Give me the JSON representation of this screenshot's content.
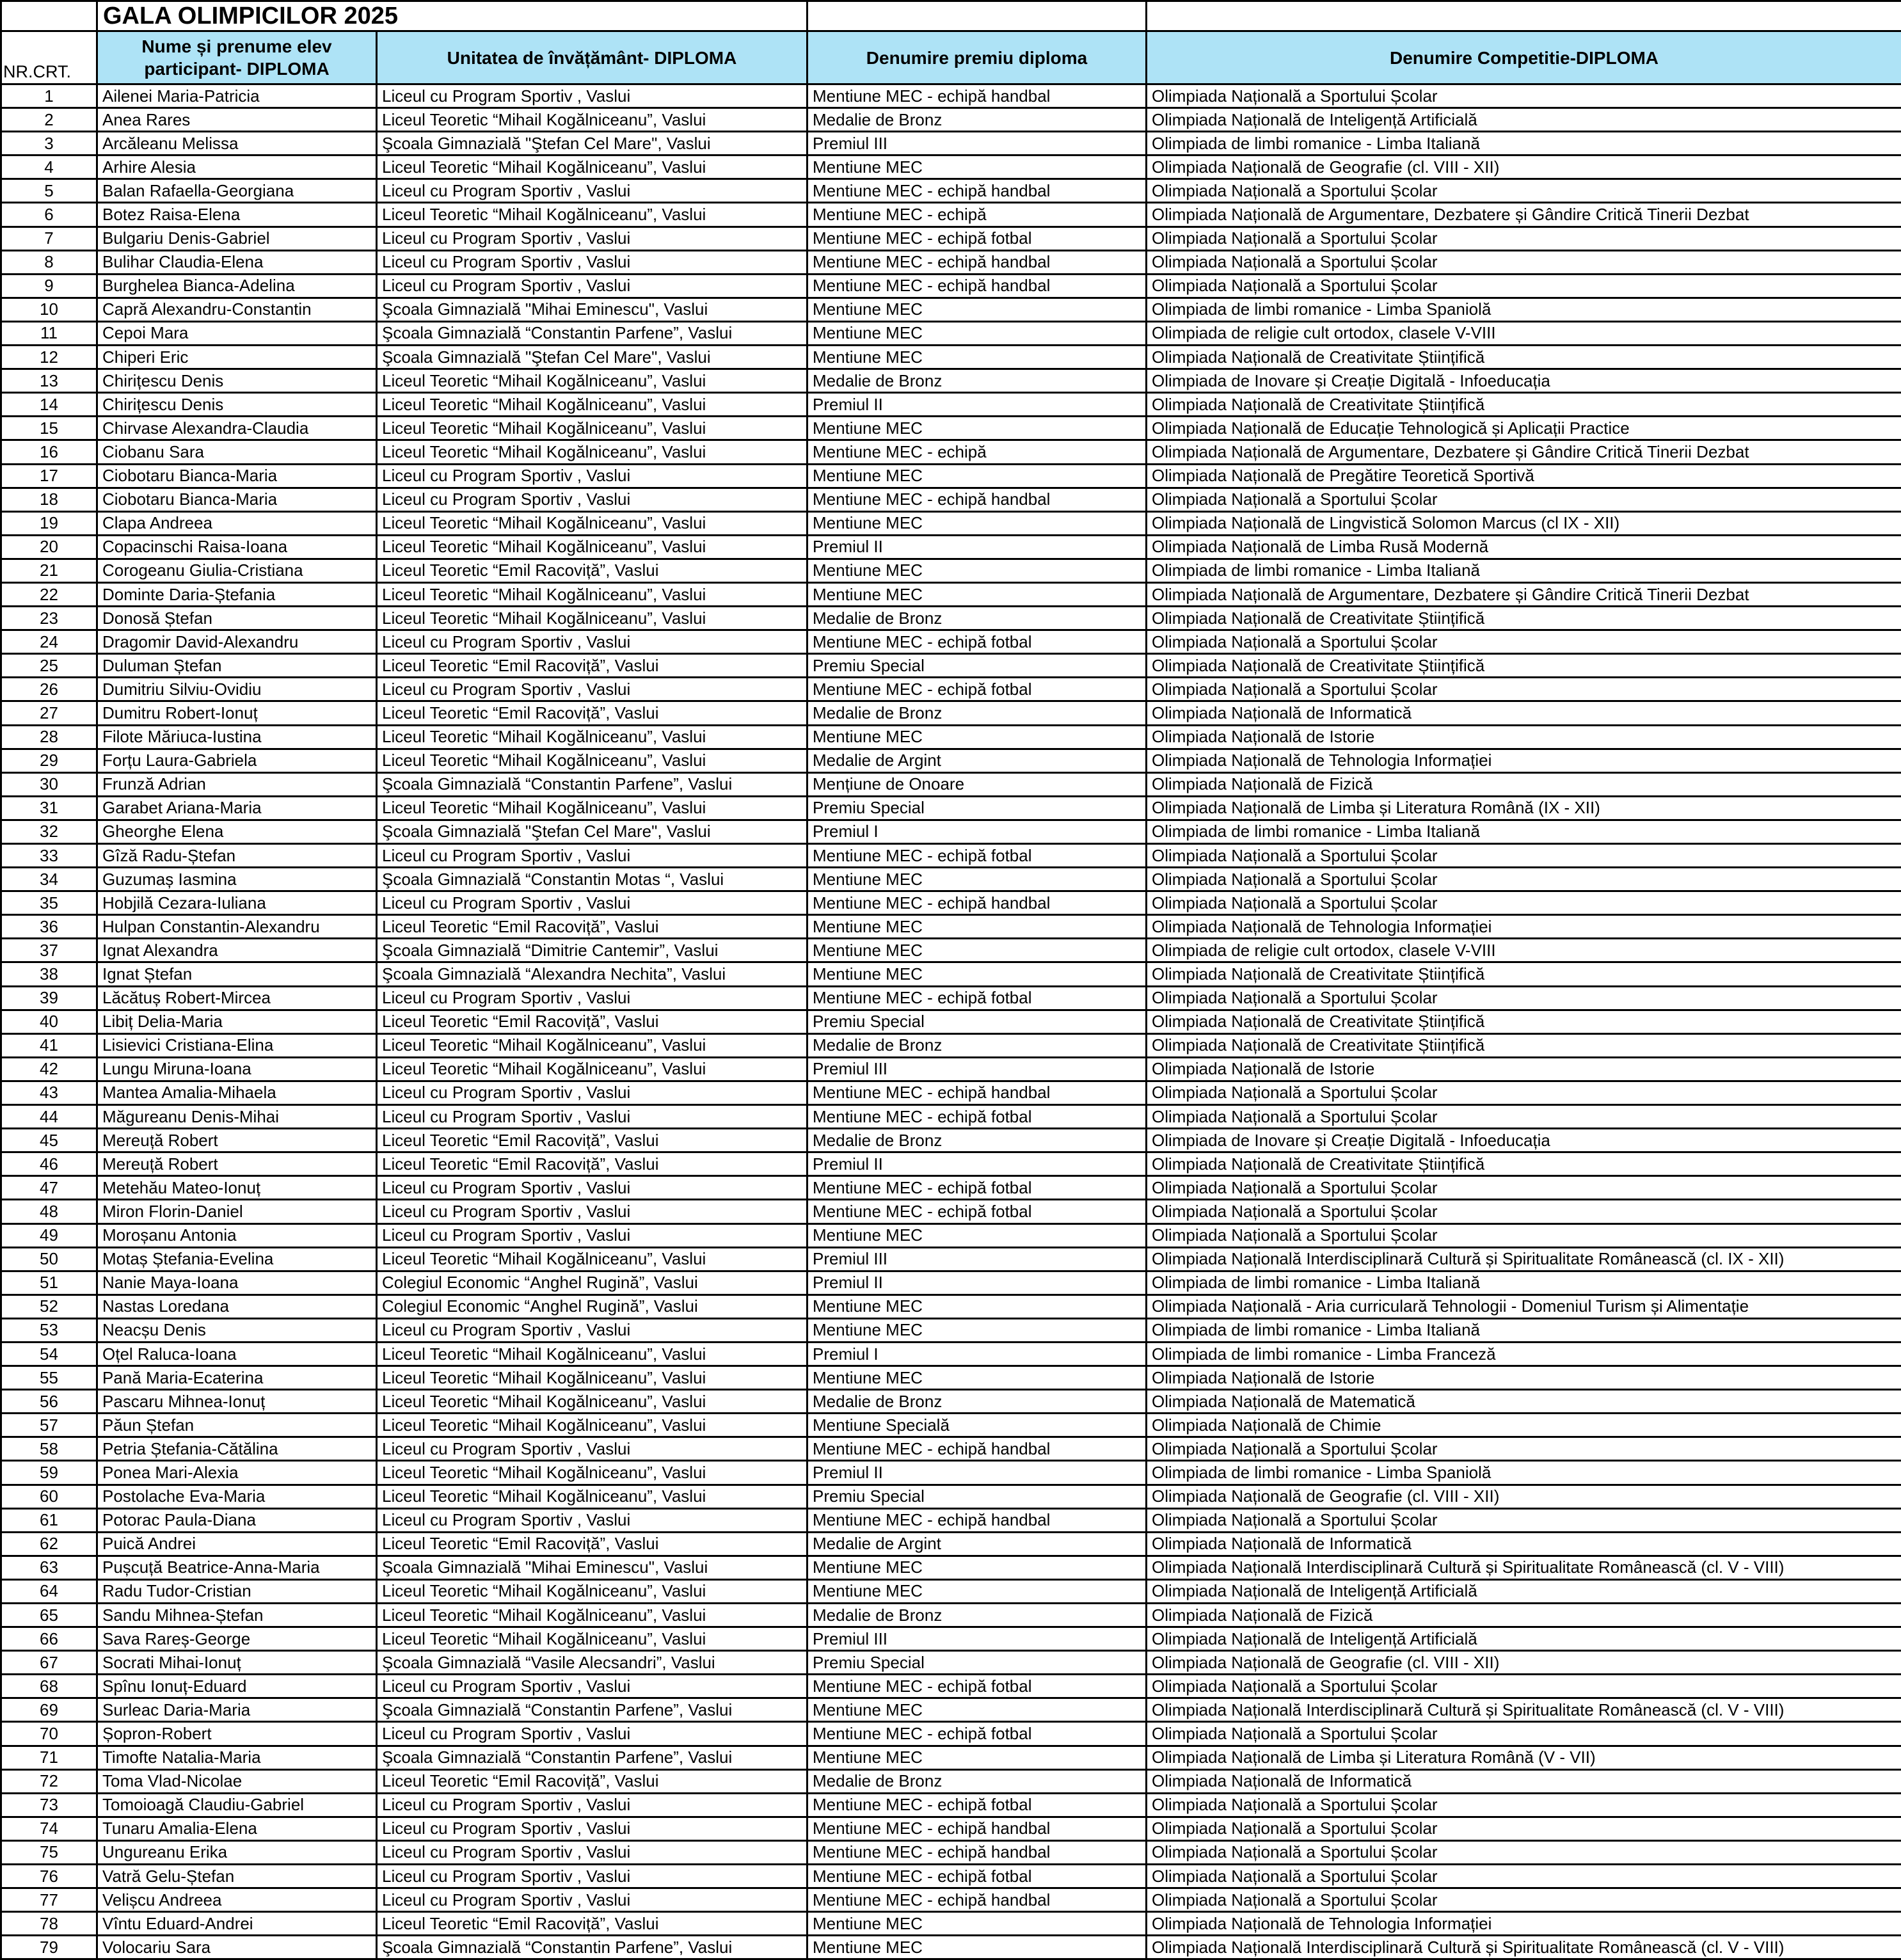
{
  "title": "GALA OLIMPICILOR 2025",
  "header": {
    "columns": [
      "NR.CRT.",
      "Nume și prenume elev participant- DIPLOMA",
      "Unitatea de învățământ- DIPLOMA",
      "Denumire premiu diploma",
      "Denumire Competitie-DIPLOMA"
    ]
  },
  "colors": {
    "header_bg": "#AEE3F6",
    "border": "#000000"
  },
  "rows": [
    [
      1,
      "Ailenei Maria-Patricia",
      "Liceul cu Program Sportiv , Vaslui",
      "Mentiune MEC - echipă handbal",
      "Olimpiada Națională a Sportului Școlar"
    ],
    [
      2,
      "Anea Rares",
      "Liceul Teoretic “Mihail Kogălniceanu”, Vaslui",
      "Medalie de Bronz",
      "Olimpiada Națională de Inteligență Artificială"
    ],
    [
      3,
      "Arcăleanu Melissa",
      "Şcoala Gimnazială \"Ştefan Cel Mare\", Vaslui",
      "Premiul III",
      "Olimpiada de limbi romanice - Limba Italiană"
    ],
    [
      4,
      "Arhire Alesia",
      "Liceul Teoretic “Mihail Kogălniceanu”, Vaslui",
      "Mentiune MEC",
      "Olimpiada Națională de Geografie (cl. VIII - XII)"
    ],
    [
      5,
      "Balan Rafaella-Georgiana",
      "Liceul cu Program Sportiv , Vaslui",
      "Mentiune MEC - echipă handbal",
      "Olimpiada Națională a Sportului Școlar"
    ],
    [
      6,
      "Botez Raisa-Elena",
      "Liceul Teoretic “Mihail Kogălniceanu”, Vaslui",
      "Mentiune MEC - echipă",
      "Olimpiada Națională de Argumentare, Dezbatere și Gândire Critică Tinerii Dezbat"
    ],
    [
      7,
      "Bulgariu Denis-Gabriel",
      "Liceul cu Program Sportiv , Vaslui",
      "Mentiune MEC - echipă fotbal",
      "Olimpiada Națională a Sportului Școlar"
    ],
    [
      8,
      "Bulihar Claudia-Elena",
      "Liceul cu Program Sportiv , Vaslui",
      "Mentiune MEC - echipă handbal",
      "Olimpiada Națională a Sportului Școlar"
    ],
    [
      9,
      "Burghelea Bianca-Adelina",
      "Liceul cu Program Sportiv , Vaslui",
      "Mentiune MEC - echipă handbal",
      "Olimpiada Națională a Sportului Școlar"
    ],
    [
      10,
      "Capră Alexandru-Constantin",
      "Şcoala Gimnazială  \"Mihai Eminescu\", Vaslui",
      "Mentiune MEC",
      "Olimpiada de limbi romanice - Limba Spaniolă"
    ],
    [
      11,
      "Cepoi Mara",
      "Şcoala Gimnazială “Constantin Parfene”, Vaslui",
      "Mentiune MEC",
      "Olimpiada de religie cult ortodox, clasele V-VIII"
    ],
    [
      12,
      "Chiperi Eric",
      "Şcoala Gimnazială \"Ştefan Cel Mare\", Vaslui",
      "Mentiune MEC",
      "Olimpiada Națională de Creativitate Științifică"
    ],
    [
      13,
      "Chirițescu Denis",
      "Liceul Teoretic “Mihail Kogălniceanu”, Vaslui",
      "Medalie de Bronz",
      "Olimpiada de Inovare și Creație Digitală - Infoeducația"
    ],
    [
      14,
      "Chirițescu Denis",
      "Liceul Teoretic “Mihail Kogălniceanu”, Vaslui",
      "Premiul II",
      "Olimpiada Națională de Creativitate Științifică"
    ],
    [
      15,
      "Chirvase Alexandra-Claudia",
      "Liceul Teoretic “Mihail Kogălniceanu”, Vaslui",
      "Mentiune MEC",
      "Olimpiada Națională de Educație Tehnologică și Aplicații Practice"
    ],
    [
      16,
      "Ciobanu Sara",
      "Liceul Teoretic “Mihail Kogălniceanu”, Vaslui",
      "Mentiune MEC - echipă",
      "Olimpiada Națională de Argumentare, Dezbatere și Gândire Critică Tinerii Dezbat"
    ],
    [
      17,
      "Ciobotaru Bianca-Maria",
      "Liceul cu Program Sportiv , Vaslui",
      "Mentiune MEC",
      "Olimpiada Națională de Pregătire Teoretică Sportivă"
    ],
    [
      18,
      "Ciobotaru Bianca-Maria",
      "Liceul cu Program Sportiv , Vaslui",
      "Mentiune MEC - echipă handbal",
      "Olimpiada Națională a Sportului Școlar"
    ],
    [
      19,
      "Clapa Andreea",
      "Liceul Teoretic “Mihail Kogălniceanu”, Vaslui",
      "Mentiune MEC",
      "Olimpiada Națională de Lingvistică Solomon Marcus (cl IX - XII)"
    ],
    [
      20,
      "Copacinschi Raisa-Ioana",
      "Liceul Teoretic “Mihail Kogălniceanu”, Vaslui",
      "Premiul II",
      "Olimpiada Națională de Limba Rusă Modernă"
    ],
    [
      21,
      "Corogeanu Giulia-Cristiana",
      "Liceul Teoretic “Emil Racoviță”, Vaslui",
      "Mentiune MEC",
      "Olimpiada de limbi romanice - Limba Italiană"
    ],
    [
      22,
      "Dominte Daria-Ștefania",
      "Liceul Teoretic “Mihail Kogălniceanu”, Vaslui",
      "Mentiune MEC",
      "Olimpiada Națională de Argumentare, Dezbatere și Gândire Critică Tinerii Dezbat"
    ],
    [
      23,
      "Donosă Ștefan",
      "Liceul Teoretic “Mihail Kogălniceanu”, Vaslui",
      "Medalie de Bronz",
      "Olimpiada Națională de Creativitate Științifică"
    ],
    [
      24,
      "Dragomir David-Alexandru",
      "Liceul cu Program Sportiv , Vaslui",
      "Mentiune MEC - echipă fotbal",
      "Olimpiada Națională a Sportului Școlar"
    ],
    [
      25,
      "Duluman Ștefan",
      "Liceul Teoretic “Emil Racoviță”, Vaslui",
      "Premiu Special",
      "Olimpiada Națională de Creativitate Științifică"
    ],
    [
      26,
      "Dumitriu Silviu-Ovidiu",
      "Liceul cu Program Sportiv , Vaslui",
      "Mentiune MEC - echipă fotbal",
      "Olimpiada Națională a Sportului Școlar"
    ],
    [
      27,
      "Dumitru Robert-Ionuț",
      "Liceul Teoretic “Emil Racoviță”, Vaslui",
      "Medalie de Bronz",
      "Olimpiada Națională de Informatică"
    ],
    [
      28,
      "Filote Măriuca-Iustina",
      "Liceul Teoretic “Mihail Kogălniceanu”, Vaslui",
      "Mentiune MEC",
      "Olimpiada Națională de Istorie"
    ],
    [
      29,
      "Forțu Laura-Gabriela",
      "Liceul Teoretic “Mihail Kogălniceanu”, Vaslui",
      "Medalie de Argint",
      "Olimpiada Națională de Tehnologia Informației"
    ],
    [
      30,
      "Frunză Adrian",
      "Şcoala Gimnazială “Constantin Parfene”, Vaslui",
      "Mențiune de Onoare",
      "Olimpiada Națională de Fizică"
    ],
    [
      31,
      "Garabet Ariana-Maria",
      "Liceul Teoretic “Mihail Kogălniceanu”, Vaslui",
      "Premiu Special",
      "Olimpiada Națională de Limba și Literatura Română (IX - XII)"
    ],
    [
      32,
      "Gheorghe Elena",
      "Şcoala Gimnazială \"Ştefan Cel Mare\", Vaslui",
      "Premiul I",
      "Olimpiada de limbi romanice - Limba Italiană"
    ],
    [
      33,
      "Gîză Radu-Ștefan",
      "Liceul cu Program Sportiv , Vaslui",
      "Mentiune MEC - echipă fotbal",
      "Olimpiada Națională a Sportului Școlar"
    ],
    [
      34,
      "Guzumaș Iasmina",
      "Şcoala Gimnazială  “Constantin Motas “, Vaslui",
      "Mentiune MEC",
      "Olimpiada Națională a Sportului Școlar"
    ],
    [
      35,
      "Hobjilă Cezara-Iuliana",
      "Liceul cu Program Sportiv , Vaslui",
      "Mentiune MEC - echipă handbal",
      "Olimpiada Națională a Sportului Școlar"
    ],
    [
      36,
      "Hulpan Constantin-Alexandru",
      "Liceul Teoretic “Emil Racoviță”, Vaslui",
      "Mentiune MEC",
      "Olimpiada Națională de Tehnologia Informației"
    ],
    [
      37,
      "Ignat Alexandra",
      "Şcoala Gimnazială “Dimitrie Cantemir”, Vaslui",
      "Mentiune MEC",
      "Olimpiada de religie cult ortodox, clasele V-VIII"
    ],
    [
      38,
      "Ignat Ștefan",
      "Şcoala Gimnazială  “Alexandra Nechita”, Vaslui",
      "Mentiune MEC",
      "Olimpiada Națională de Creativitate Științifică"
    ],
    [
      39,
      "Lăcătuș Robert-Mircea",
      "Liceul cu Program Sportiv , Vaslui",
      "Mentiune MEC - echipă fotbal",
      "Olimpiada Națională a Sportului Școlar"
    ],
    [
      40,
      "Libiț Delia-Maria",
      "Liceul Teoretic “Emil Racoviță”, Vaslui",
      "Premiu Special",
      "Olimpiada Națională de Creativitate Științifică"
    ],
    [
      41,
      "Lisievici Cristiana-Elina",
      "Liceul Teoretic “Mihail Kogălniceanu”, Vaslui",
      "Medalie de Bronz",
      "Olimpiada Națională de Creativitate Științifică"
    ],
    [
      42,
      "Lungu Miruna-Ioana",
      "Liceul Teoretic “Mihail Kogălniceanu”, Vaslui",
      "Premiul III",
      "Olimpiada Națională de Istorie"
    ],
    [
      43,
      "Mantea Amalia-Mihaela",
      "Liceul cu Program Sportiv , Vaslui",
      "Mentiune MEC - echipă handbal",
      "Olimpiada Națională a Sportului Școlar"
    ],
    [
      44,
      "Măgureanu Denis-Mihai",
      "Liceul cu Program Sportiv , Vaslui",
      "Mentiune MEC - echipă fotbal",
      "Olimpiada Națională a Sportului Școlar"
    ],
    [
      45,
      "Mereuță Robert",
      "Liceul Teoretic “Emil Racoviță”, Vaslui",
      "Medalie de Bronz",
      "Olimpiada de Inovare și Creație Digitală - Infoeducația"
    ],
    [
      46,
      "Mereuță Robert",
      "Liceul Teoretic “Emil Racoviță”, Vaslui",
      "Premiul II",
      "Olimpiada Națională de Creativitate Științifică"
    ],
    [
      47,
      "Metehău Mateo-Ionuț",
      "Liceul cu Program Sportiv , Vaslui",
      "Mentiune MEC - echipă fotbal",
      "Olimpiada Națională a Sportului Școlar"
    ],
    [
      48,
      "Miron Florin-Daniel",
      "Liceul cu Program Sportiv , Vaslui",
      "Mentiune MEC - echipă fotbal",
      "Olimpiada Națională a Sportului Școlar"
    ],
    [
      49,
      "Moroșanu Antonia",
      "Liceul cu Program Sportiv , Vaslui",
      "Mentiune MEC",
      "Olimpiada Națională a Sportului Școlar"
    ],
    [
      50,
      "Motaș Ștefania-Evelina",
      "Liceul Teoretic “Mihail Kogălniceanu”, Vaslui",
      "Premiul III",
      "Olimpiada Națională Interdisciplinară Cultură și Spiritualitate Românească (cl. IX - XII)"
    ],
    [
      51,
      "Nanie Maya-Ioana",
      "Colegiul Economic “Anghel Rugină”, Vaslui",
      "Premiul II",
      "Olimpiada de limbi romanice - Limba Italiană"
    ],
    [
      52,
      "Nastas Loredana",
      "Colegiul Economic “Anghel Rugină”, Vaslui",
      "Mentiune MEC",
      "Olimpiada Națională - Aria curriculară Tehnologii  - Domeniul Turism și Alimentație"
    ],
    [
      53,
      "Neacșu Denis",
      "Liceul cu Program Sportiv , Vaslui",
      "Mentiune MEC",
      "Olimpiada de limbi romanice - Limba Italiană"
    ],
    [
      54,
      "Oțel Raluca-Ioana",
      "Liceul Teoretic “Mihail Kogălniceanu”, Vaslui",
      "Premiul I",
      "Olimpiada de limbi romanice - Limba Franceză"
    ],
    [
      55,
      "Pană Maria-Ecaterina",
      "Liceul Teoretic “Mihail Kogălniceanu”, Vaslui",
      "Mentiune MEC",
      "Olimpiada Națională de Istorie"
    ],
    [
      56,
      "Pascaru Mihnea-Ionuț",
      "Liceul Teoretic “Mihail Kogălniceanu”, Vaslui",
      "Medalie de Bronz",
      "Olimpiada Națională de Matematică"
    ],
    [
      57,
      "Păun Ștefan",
      "Liceul Teoretic “Mihail Kogălniceanu”, Vaslui",
      "Mentiune Specială",
      "Olimpiada Națională de Chimie"
    ],
    [
      58,
      "Petria Ștefania-Cătălina",
      "Liceul cu Program Sportiv , Vaslui",
      "Mentiune MEC - echipă handbal",
      "Olimpiada Națională a Sportului Școlar"
    ],
    [
      59,
      "Ponea Mari-Alexia",
      "Liceul Teoretic “Mihail Kogălniceanu”, Vaslui",
      "Premiul II",
      "Olimpiada de limbi romanice - Limba Spaniolă"
    ],
    [
      60,
      "Postolache Eva-Maria",
      "Liceul Teoretic “Mihail Kogălniceanu”, Vaslui",
      "Premiu Special",
      "Olimpiada Națională de Geografie (cl. VIII - XII)"
    ],
    [
      61,
      "Potorac Paula-Diana",
      "Liceul cu Program Sportiv , Vaslui",
      "Mentiune MEC - echipă handbal",
      "Olimpiada Națională a Sportului Școlar"
    ],
    [
      62,
      "Puică Andrei",
      "Liceul Teoretic “Emil Racoviță”, Vaslui",
      "Medalie de Argint",
      "Olimpiada Națională de Informatică"
    ],
    [
      63,
      "Pușcuță Beatrice-Anna-Maria",
      "Şcoala Gimnazială  \"Mihai Eminescu\", Vaslui",
      "Mentiune MEC",
      "Olimpiada Națională Interdisciplinară Cultură și Spiritualitate Românească (cl. V - VIII)"
    ],
    [
      64,
      "Radu Tudor-Cristian",
      "Liceul Teoretic “Mihail Kogălniceanu”, Vaslui",
      "Mentiune MEC",
      "Olimpiada Națională de Inteligență Artificială"
    ],
    [
      65,
      "Sandu Mihnea-Ștefan",
      "Liceul Teoretic “Mihail Kogălniceanu”, Vaslui",
      "Medalie de Bronz",
      "Olimpiada Națională de Fizică"
    ],
    [
      66,
      "Sava Rareș-George",
      "Liceul Teoretic “Mihail Kogălniceanu”, Vaslui",
      "Premiul III",
      "Olimpiada Națională de Inteligență Artificială"
    ],
    [
      67,
      "Socrati Mihai-Ionuț",
      "Şcoala Gimnazială “Vasile  Alecsandri”, Vaslui",
      "Premiu Special",
      "Olimpiada Națională de Geografie (cl. VIII - XII)"
    ],
    [
      68,
      "Spînu Ionuț-Eduard",
      "Liceul cu Program Sportiv , Vaslui",
      "Mentiune MEC - echipă fotbal",
      "Olimpiada Națională a Sportului Școlar"
    ],
    [
      69,
      "Surleac Daria-Maria",
      "Şcoala Gimnazială “Constantin Parfene”, Vaslui",
      "Mentiune MEC",
      "Olimpiada Națională Interdisciplinară Cultură și Spiritualitate Românească (cl. V - VIII)"
    ],
    [
      70,
      "Șopron-Robert",
      "Liceul cu Program Sportiv , Vaslui",
      "Mentiune MEC - echipă fotbal",
      "Olimpiada Națională a Sportului Școlar"
    ],
    [
      71,
      "Timofte Natalia-Maria",
      "Şcoala Gimnazială “Constantin Parfene”, Vaslui",
      "Mentiune MEC",
      "Olimpiada Națională de Limba și Literatura Română (V - VII)"
    ],
    [
      72,
      "Toma Vlad-Nicolae",
      "Liceul Teoretic “Emil Racoviță”, Vaslui",
      "Medalie de Bronz",
      "Olimpiada Națională de Informatică"
    ],
    [
      73,
      "Tomoioagă Claudiu-Gabriel",
      "Liceul cu Program Sportiv , Vaslui",
      "Mentiune MEC - echipă fotbal",
      "Olimpiada Națională a Sportului Școlar"
    ],
    [
      74,
      "Tunaru Amalia-Elena",
      "Liceul cu Program Sportiv , Vaslui",
      "Mentiune MEC - echipă handbal",
      "Olimpiada Națională a Sportului Școlar"
    ],
    [
      75,
      "Ungureanu Erika",
      "Liceul cu Program Sportiv , Vaslui",
      "Mentiune MEC - echipă handbal",
      "Olimpiada Națională a Sportului Școlar"
    ],
    [
      76,
      "Vatră Gelu-Ștefan",
      "Liceul cu Program Sportiv , Vaslui",
      "Mentiune MEC - echipă fotbal",
      "Olimpiada Națională a Sportului Școlar"
    ],
    [
      77,
      "Velișcu Andreea",
      "Liceul cu Program Sportiv , Vaslui",
      "Mentiune MEC - echipă handbal",
      "Olimpiada Națională a Sportului Școlar"
    ],
    [
      78,
      "Vîntu Eduard-Andrei",
      "Liceul Teoretic “Emil Racoviță”, Vaslui",
      "Mentiune MEC",
      "Olimpiada Națională de Tehnologia Informației"
    ],
    [
      79,
      "Volocariu Sara",
      "Şcoala Gimnazială “Constantin Parfene”, Vaslui",
      "Mentiune MEC",
      "Olimpiada Națională Interdisciplinară Cultură și Spiritualitate Românească (cl. V - VIII)"
    ]
  ]
}
